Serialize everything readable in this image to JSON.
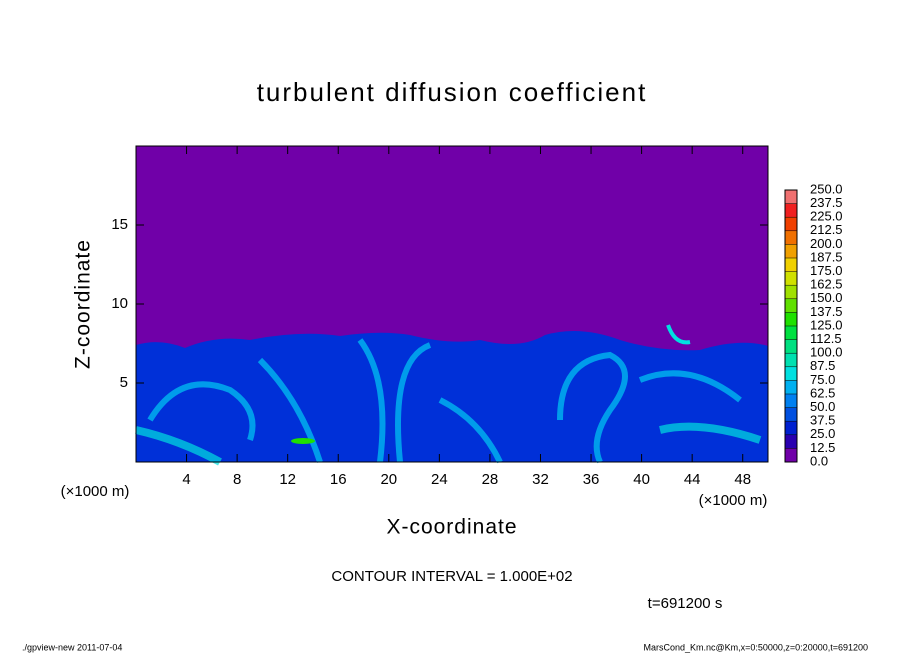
{
  "chart_data": {
    "type": "contour",
    "title": "turbulent diffusion coefficient",
    "x_label": "X-coordinate",
    "y_label": "Z-coordinate",
    "x_unit": "(×1000 m)",
    "y_unit": "(×1000 m)",
    "xlim": [
      0,
      50
    ],
    "xticks": [
      4,
      8,
      12,
      16,
      20,
      24,
      28,
      32,
      36,
      40,
      44,
      48
    ],
    "ylim": [
      0,
      20
    ],
    "yticks": [
      5,
      10,
      15
    ],
    "levels": [
      {
        "value": 0,
        "label": "0.0"
      },
      12.5,
      {
        "value": 25,
        "label": "25.0"
      },
      37.5,
      {
        "value": 50,
        "label": "50.0"
      },
      62.5,
      {
        "value": 75,
        "label": "75.0"
      },
      87.5,
      {
        "value": 100,
        "label": "100.0"
      },
      112.5,
      {
        "value": 125,
        "label": "125.0"
      },
      137.5,
      {
        "value": 150,
        "label": "150.0"
      },
      162.5,
      {
        "value": 175,
        "label": "175.0"
      },
      187.5,
      {
        "value": 200,
        "label": "200.0"
      },
      212.5,
      {
        "value": 225,
        "label": "225.0"
      },
      237.5,
      {
        "value": 250,
        "label": "250.0"
      }
    ],
    "level_colors": [
      "#7000a8",
      "#2a00b0",
      "#0020d0",
      "#0050e0",
      "#0080f0",
      "#00b0f0",
      "#00e0e0",
      "#00e0b0",
      "#00e080",
      "#00e040",
      "#20e000",
      "#60e000",
      "#a0e000",
      "#d0e000",
      "#f0d000",
      "#f0a000",
      "#f07000",
      "#f04000",
      "#f02020",
      "#f07070"
    ],
    "contour_note": "CONTOUR INTERVAL = 1.000E+02",
    "time_note": "t=691200 s",
    "footer_left": "./gpview-new  2011-07-04",
    "footer_right": "MarsCond_Km.nc@Km,x=0:50000,z=0:20000,t=691200"
  }
}
